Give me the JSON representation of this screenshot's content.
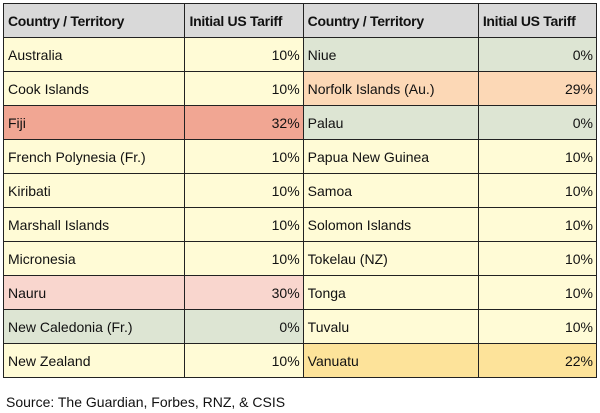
{
  "headers": [
    "Country / Territory",
    "Initial US Tariff",
    "Country / Territory",
    "Initial US Tariff"
  ],
  "colors": {
    "header": "#d9d9d9",
    "10": "#fffbd6",
    "0": "#dde5d3",
    "32": "#f1a693",
    "30": "#f9d6ce",
    "29": "#fcd8b6",
    "22": "#fde39a"
  },
  "rows": [
    {
      "left": {
        "country": "Australia",
        "tariff": "10%"
      },
      "right": {
        "country": "Niue",
        "tariff": "0%"
      }
    },
    {
      "left": {
        "country": "Cook Islands",
        "tariff": "10%"
      },
      "right": {
        "country": "Norfolk Islands (Au.)",
        "tariff": "29%"
      }
    },
    {
      "left": {
        "country": "Fiji",
        "tariff": "32%"
      },
      "right": {
        "country": "Palau",
        "tariff": "0%"
      }
    },
    {
      "left": {
        "country": "French Polynesia (Fr.)",
        "tariff": "10%"
      },
      "right": {
        "country": "Papua New Guinea",
        "tariff": "10%"
      }
    },
    {
      "left": {
        "country": "Kiribati",
        "tariff": "10%"
      },
      "right": {
        "country": "Samoa",
        "tariff": "10%"
      }
    },
    {
      "left": {
        "country": "Marshall Islands",
        "tariff": "10%"
      },
      "right": {
        "country": "Solomon Islands",
        "tariff": "10%"
      }
    },
    {
      "left": {
        "country": "Micronesia",
        "tariff": "10%"
      },
      "right": {
        "country": "Tokelau (NZ)",
        "tariff": "10%"
      }
    },
    {
      "left": {
        "country": "Nauru",
        "tariff": "30%"
      },
      "right": {
        "country": "Tonga",
        "tariff": "10%"
      }
    },
    {
      "left": {
        "country": "New Caledonia (Fr.)",
        "tariff": "0%"
      },
      "right": {
        "country": "Tuvalu",
        "tariff": "10%"
      }
    },
    {
      "left": {
        "country": "New Zealand",
        "tariff": "10%"
      },
      "right": {
        "country": "Vanuatu",
        "tariff": "22%"
      }
    }
  ],
  "source": "Source: The Guardian, Forbes, RNZ, & CSIS"
}
